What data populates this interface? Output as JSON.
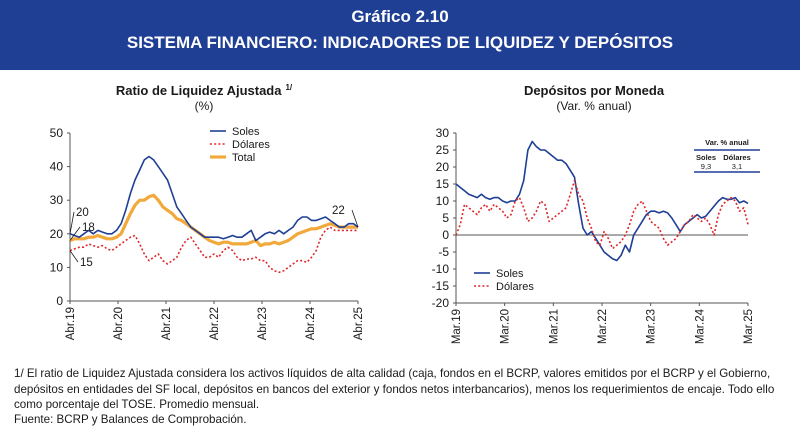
{
  "header": {
    "chart_number": "Gráfico 2.10",
    "title": "SISTEMA FINANCIERO: INDICADORES DE LIQUIDEZ Y DEPÓSITOS"
  },
  "chart_data": [
    {
      "type": "line",
      "title": "Ratio de Liquidez Ajustada",
      "title_note": "1/",
      "subtitle": "(%)",
      "ylim": [
        0,
        50
      ],
      "yticks": [
        0,
        10,
        20,
        30,
        40,
        50
      ],
      "x_tick_labels": [
        "Abr.19",
        "Abr.20",
        "Abr.21",
        "Abr.22",
        "Abr.23",
        "Abr.24",
        "Abr.25"
      ],
      "legend_position": "top-center",
      "annotations": [
        {
          "text": "20",
          "series": "Soles",
          "at": "Abr.19"
        },
        {
          "text": "18",
          "series": "Total",
          "at": "Abr.19"
        },
        {
          "text": "15",
          "series": "Dólares",
          "at": "Abr.19"
        },
        {
          "text": "22",
          "series": "Total",
          "at": "Abr.25"
        }
      ],
      "series": [
        {
          "name": "Soles",
          "color": "#1f3f95",
          "style": "solid",
          "values": [
            20,
            19.5,
            19,
            20,
            21,
            20,
            21,
            20.5,
            20,
            20,
            21,
            23,
            27,
            32,
            36,
            39,
            42,
            43,
            42,
            40,
            38,
            36,
            32,
            28,
            26,
            24,
            22,
            21,
            20,
            19,
            19,
            19,
            19,
            18.5,
            19,
            19.5,
            19,
            19,
            20,
            21,
            18,
            19,
            20,
            20.5,
            20,
            21,
            20,
            21,
            22,
            24,
            25,
            25,
            24,
            24,
            24.5,
            25,
            24,
            23,
            22,
            22,
            23,
            23,
            22
          ]
        },
        {
          "name": "Dólares",
          "color": "#e0262a",
          "style": "dotted",
          "values": [
            15,
            15.5,
            16,
            16,
            17,
            16.5,
            16,
            16.5,
            15.5,
            15,
            16,
            17,
            18,
            19,
            19.5,
            17,
            14,
            12,
            13,
            14,
            12,
            11,
            12,
            13,
            16,
            18,
            19,
            17,
            15,
            13,
            13,
            14,
            13,
            15,
            16,
            15,
            13,
            12,
            12.5,
            12.5,
            13,
            12,
            12,
            10,
            9,
            8.5,
            9,
            10,
            11,
            12,
            12,
            11.5,
            13,
            15,
            19,
            21,
            22,
            21,
            21,
            21,
            21,
            21,
            21
          ]
        },
        {
          "name": "Total",
          "color": "#f2a93b",
          "style": "solid-thick",
          "values": [
            18,
            18.5,
            18.5,
            18.5,
            19,
            19,
            19.5,
            19,
            18.5,
            18.5,
            19,
            20,
            23,
            26,
            28.5,
            30,
            30,
            31,
            31.5,
            30,
            28,
            27,
            26,
            24.5,
            24,
            23,
            22,
            21,
            20,
            19,
            18,
            17.5,
            17,
            17.5,
            17.5,
            17,
            17,
            17,
            17,
            17.5,
            18,
            16.5,
            17,
            17,
            17.5,
            17,
            17.5,
            18,
            19,
            20,
            20.5,
            21,
            21.5,
            21.5,
            22,
            22.5,
            23,
            22.5,
            22,
            22,
            22,
            22,
            22
          ]
        }
      ]
    },
    {
      "type": "line",
      "title": "Depósitos por Moneda",
      "subtitle": "(Var. % anual)",
      "ylim": [
        -20,
        30
      ],
      "yticks": [
        -20,
        -15,
        -10,
        -5,
        0,
        5,
        10,
        15,
        20,
        25,
        30
      ],
      "x_tick_labels": [
        "Mar.19",
        "Mar.20",
        "Mar.21",
        "Mar.22",
        "Mar.23",
        "Mar.24",
        "Mar.25"
      ],
      "legend_position": "bottom-left",
      "inset_table": {
        "title": "Var. % anual",
        "columns": [
          "Soles",
          "Dólares"
        ],
        "values": [
          "9,3",
          "3,1"
        ]
      },
      "series": [
        {
          "name": "Soles",
          "color": "#1f3f95",
          "style": "solid",
          "values": [
            15,
            14,
            13,
            12,
            11.5,
            11,
            12,
            11,
            10.5,
            11,
            11,
            10,
            9.5,
            10,
            10,
            12,
            16,
            25,
            27.5,
            26,
            25,
            25,
            24,
            23,
            22,
            22,
            21,
            19,
            17,
            9,
            2,
            0,
            1,
            -1,
            -3,
            -5,
            -6,
            -7,
            -7.5,
            -6,
            -3,
            -5,
            0,
            2,
            4,
            6,
            7,
            7,
            6.5,
            7,
            6.5,
            5,
            3,
            1,
            3,
            4,
            5,
            6,
            5,
            5.5,
            7,
            8.5,
            10,
            11,
            10.5,
            10.5,
            11,
            9.5,
            10,
            9.3
          ]
        },
        {
          "name": "Dólares",
          "color": "#e0262a",
          "style": "dotted",
          "values": [
            0,
            3,
            9,
            8,
            7,
            6,
            8,
            9,
            7,
            9,
            8,
            7,
            5,
            6,
            10,
            11,
            8,
            4,
            5,
            7,
            10,
            9,
            4,
            5,
            6,
            7,
            8,
            12,
            16,
            12,
            10,
            5,
            2,
            -2,
            -3,
            1,
            -1,
            -4,
            -3,
            -2,
            0,
            3,
            7,
            9,
            10,
            7,
            4,
            3,
            2,
            -1,
            -3,
            -2,
            -1,
            1,
            3,
            4,
            6,
            5,
            4,
            5,
            3,
            0,
            6,
            9,
            10,
            11,
            10,
            7,
            8,
            3.1
          ]
        }
      ]
    }
  ],
  "footnote": "1/ El ratio de Liquidez Ajustada considera los activos líquidos de alta calidad (caja, fondos en el BCRP, valores emitidos por el BCRP y el Gobierno, depósitos en entidades del SF local, depósitos en bancos del exterior y fondos netos interbancarios), menos los requerimientos de encaje. Todo ello como porcentaje del TOSE. Promedio mensual.",
  "source": "Fuente: BCRP y Balances de Comprobación."
}
